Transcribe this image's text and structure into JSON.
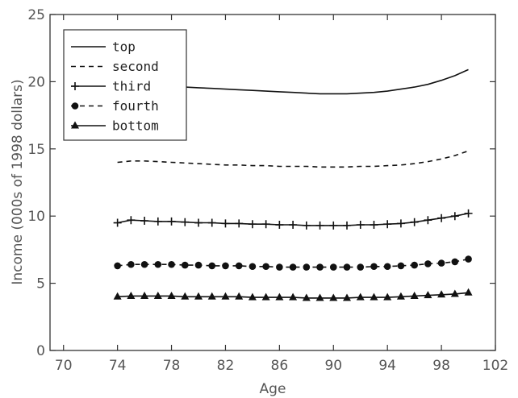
{
  "chart_data": {
    "type": "line",
    "xlabel": "Age",
    "ylabel": "Income (000s of 1998 dollars)",
    "xlim": [
      69,
      102
    ],
    "ylim": [
      0,
      25
    ],
    "x_ticks": [
      "70",
      "74",
      "78",
      "82",
      "86",
      "90",
      "94",
      "98",
      "102"
    ],
    "y_ticks": [
      "0",
      "5",
      "10",
      "15",
      "20",
      "25"
    ],
    "grid": false,
    "legend_position": "top-left",
    "x": [
      74,
      75,
      76,
      77,
      78,
      79,
      80,
      81,
      82,
      83,
      84,
      85,
      86,
      87,
      88,
      89,
      90,
      91,
      92,
      93,
      94,
      95,
      96,
      97,
      98,
      99,
      100
    ],
    "series": [
      {
        "name": "top",
        "line": "solid",
        "marker": "none",
        "values": [
          19.9,
          19.8,
          19.75,
          19.7,
          19.65,
          19.6,
          19.55,
          19.5,
          19.45,
          19.4,
          19.35,
          19.3,
          19.25,
          19.2,
          19.15,
          19.1,
          19.1,
          19.1,
          19.15,
          19.2,
          19.3,
          19.45,
          19.6,
          19.8,
          20.1,
          20.45,
          20.9
        ]
      },
      {
        "name": "second",
        "line": "dashed",
        "marker": "none",
        "values": [
          14.0,
          14.1,
          14.1,
          14.05,
          14.0,
          13.95,
          13.9,
          13.85,
          13.8,
          13.8,
          13.75,
          13.75,
          13.7,
          13.7,
          13.7,
          13.65,
          13.65,
          13.65,
          13.7,
          13.7,
          13.75,
          13.8,
          13.9,
          14.05,
          14.25,
          14.5,
          14.85
        ]
      },
      {
        "name": "third",
        "line": "solid",
        "marker": "plus",
        "values": [
          9.5,
          9.7,
          9.65,
          9.6,
          9.6,
          9.55,
          9.5,
          9.5,
          9.45,
          9.45,
          9.4,
          9.4,
          9.35,
          9.35,
          9.3,
          9.3,
          9.3,
          9.3,
          9.35,
          9.35,
          9.4,
          9.45,
          9.55,
          9.7,
          9.85,
          10.0,
          10.2
        ]
      },
      {
        "name": "fourth",
        "line": "dashed",
        "marker": "circle",
        "values": [
          6.3,
          6.4,
          6.4,
          6.4,
          6.4,
          6.35,
          6.35,
          6.3,
          6.3,
          6.3,
          6.25,
          6.25,
          6.2,
          6.2,
          6.2,
          6.2,
          6.2,
          6.2,
          6.2,
          6.25,
          6.25,
          6.3,
          6.35,
          6.45,
          6.5,
          6.6,
          6.8
        ]
      },
      {
        "name": "bottom",
        "line": "solid",
        "marker": "triangle",
        "values": [
          4.0,
          4.05,
          4.05,
          4.05,
          4.05,
          4.0,
          4.0,
          4.0,
          4.0,
          4.0,
          3.95,
          3.95,
          3.95,
          3.95,
          3.9,
          3.9,
          3.9,
          3.9,
          3.95,
          3.95,
          3.95,
          4.0,
          4.05,
          4.1,
          4.15,
          4.2,
          4.3
        ]
      }
    ]
  }
}
